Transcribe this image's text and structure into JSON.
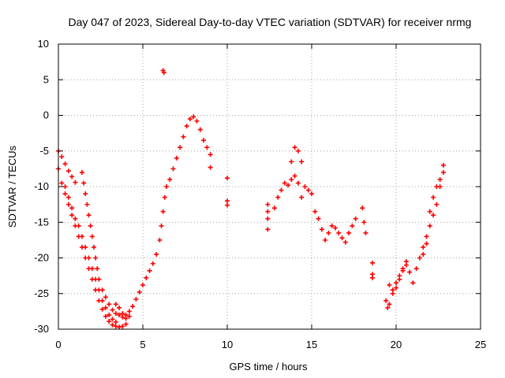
{
  "chart_data": {
    "type": "scatter",
    "title": "Day 047 of 2023, Sidereal Day-to-day VTEC variation (SDTVAR) for receiver nrmg",
    "xlabel": "GPS time / hours",
    "ylabel": "SDTVAR / TECUs",
    "xlim": [
      0,
      25
    ],
    "ylim": [
      -30,
      10
    ],
    "xticks": [
      0,
      5,
      10,
      15,
      20,
      25
    ],
    "yticks": [
      -30,
      -25,
      -20,
      -15,
      -10,
      -5,
      0,
      5,
      10
    ],
    "grid": true,
    "marker": "+",
    "colors": {
      "series": "#ff0000",
      "frame": "#000000",
      "grid": "#a0a0a0"
    },
    "series": [
      {
        "name": "SDTVAR",
        "points": [
          [
            0.0,
            -5.0
          ],
          [
            0.2,
            -5.8
          ],
          [
            0.4,
            -6.8
          ],
          [
            0.6,
            -7.8
          ],
          [
            0.8,
            -8.6
          ],
          [
            1.0,
            -9.4
          ],
          [
            0.0,
            -7.5
          ],
          [
            0.2,
            -9.5
          ],
          [
            0.4,
            -11.0
          ],
          [
            0.6,
            -12.5
          ],
          [
            0.8,
            -14.0
          ],
          [
            1.0,
            -15.5
          ],
          [
            1.2,
            -17.0
          ],
          [
            1.4,
            -18.5
          ],
          [
            1.6,
            -20.0
          ],
          [
            1.8,
            -21.5
          ],
          [
            2.0,
            -23.0
          ],
          [
            2.2,
            -24.5
          ],
          [
            2.4,
            -26.0
          ],
          [
            2.6,
            -27.2
          ],
          [
            2.8,
            -28.2
          ],
          [
            3.0,
            -28.9
          ],
          [
            3.2,
            -29.4
          ],
          [
            3.4,
            -29.6
          ],
          [
            3.6,
            -29.7
          ],
          [
            3.8,
            -29.6
          ],
          [
            4.0,
            -29.3
          ],
          [
            0.4,
            -10.0
          ],
          [
            0.6,
            -11.5
          ],
          [
            0.8,
            -13.0
          ],
          [
            1.0,
            -14.5
          ],
          [
            1.2,
            -15.5
          ],
          [
            1.4,
            -17.0
          ],
          [
            1.6,
            -18.5
          ],
          [
            1.8,
            -20.0
          ],
          [
            2.0,
            -21.5
          ],
          [
            2.2,
            -23.0
          ],
          [
            2.4,
            -24.5
          ],
          [
            2.6,
            -26.0
          ],
          [
            2.8,
            -27.0
          ],
          [
            3.0,
            -28.0
          ],
          [
            3.2,
            -28.6
          ],
          [
            3.4,
            -29.0
          ],
          [
            1.4,
            -8.0
          ],
          [
            1.5,
            -9.5
          ],
          [
            1.6,
            -11.0
          ],
          [
            1.7,
            -12.5
          ],
          [
            1.8,
            -14.0
          ],
          [
            1.9,
            -15.5
          ],
          [
            2.0,
            -17.0
          ],
          [
            2.1,
            -18.5
          ],
          [
            2.2,
            -20.0
          ],
          [
            2.3,
            -21.5
          ],
          [
            2.4,
            -23.0
          ],
          [
            2.6,
            -24.5
          ],
          [
            2.8,
            -25.5
          ],
          [
            3.0,
            -26.5
          ],
          [
            3.2,
            -27.3
          ],
          [
            3.4,
            -27.8
          ],
          [
            3.6,
            -28.0
          ],
          [
            3.8,
            -28.3
          ],
          [
            4.0,
            -28.5
          ],
          [
            4.2,
            -28.2
          ],
          [
            3.4,
            -26.5
          ],
          [
            3.6,
            -27.0
          ],
          [
            3.8,
            -27.8
          ],
          [
            4.0,
            -28.0
          ],
          [
            4.2,
            -27.5
          ],
          [
            4.4,
            -26.8
          ],
          [
            4.6,
            -25.8
          ],
          [
            4.8,
            -24.8
          ],
          [
            5.0,
            -23.8
          ],
          [
            5.2,
            -22.8
          ],
          [
            5.4,
            -21.8
          ],
          [
            5.6,
            -20.8
          ],
          [
            5.8,
            -19.5
          ],
          [
            6.0,
            -17.5
          ],
          [
            6.1,
            -15.5
          ],
          [
            6.2,
            -13.5
          ],
          [
            6.3,
            -11.5
          ],
          [
            6.4,
            -10.0
          ],
          [
            6.6,
            -9.0
          ],
          [
            6.8,
            -7.5
          ],
          [
            7.0,
            -6.0
          ],
          [
            7.2,
            -4.5
          ],
          [
            7.4,
            -3.0
          ],
          [
            7.6,
            -1.5
          ],
          [
            7.8,
            -0.5
          ],
          [
            8.0,
            -0.2
          ],
          [
            8.2,
            -0.8
          ],
          [
            8.4,
            -2.0
          ],
          [
            8.6,
            -3.5
          ],
          [
            8.8,
            -4.5
          ],
          [
            9.0,
            -5.5
          ],
          [
            9.0,
            -7.3
          ],
          [
            6.2,
            6.3
          ],
          [
            6.25,
            6.0
          ],
          [
            10.0,
            -8.8
          ],
          [
            10.0,
            -12.0
          ],
          [
            10.0,
            -12.6
          ],
          [
            12.4,
            -12.5
          ],
          [
            12.4,
            -13.5
          ],
          [
            12.4,
            -14.5
          ],
          [
            12.4,
            -16.0
          ],
          [
            12.8,
            -13.0
          ],
          [
            13.0,
            -11.5
          ],
          [
            13.2,
            -10.5
          ],
          [
            13.4,
            -9.5
          ],
          [
            13.6,
            -9.8
          ],
          [
            13.8,
            -6.5
          ],
          [
            14.0,
            -4.5
          ],
          [
            14.2,
            -5.0
          ],
          [
            14.4,
            -6.5
          ],
          [
            13.8,
            -9.0
          ],
          [
            14.0,
            -8.5
          ],
          [
            14.2,
            -9.5
          ],
          [
            14.4,
            -11.5
          ],
          [
            14.6,
            -10.0
          ],
          [
            14.8,
            -10.5
          ],
          [
            15.0,
            -11.0
          ],
          [
            15.2,
            -13.5
          ],
          [
            15.4,
            -14.5
          ],
          [
            15.6,
            -16.0
          ],
          [
            15.8,
            -17.5
          ],
          [
            16.0,
            -16.5
          ],
          [
            16.2,
            -15.5
          ],
          [
            16.4,
            -15.8
          ],
          [
            16.6,
            -16.5
          ],
          [
            16.8,
            -17.2
          ],
          [
            17.0,
            -17.8
          ],
          [
            17.2,
            -16.5
          ],
          [
            17.4,
            -15.5
          ],
          [
            17.6,
            -14.5
          ],
          [
            18.0,
            -13.0
          ],
          [
            18.1,
            -15.0
          ],
          [
            18.2,
            -16.5
          ],
          [
            18.6,
            -20.7
          ],
          [
            18.6,
            -22.3
          ],
          [
            18.6,
            -22.8
          ],
          [
            19.4,
            -26.0
          ],
          [
            19.5,
            -27.0
          ],
          [
            19.6,
            -26.5
          ],
          [
            19.8,
            -25.0
          ],
          [
            20.0,
            -24.2
          ],
          [
            20.2,
            -23.0
          ],
          [
            20.4,
            -21.5
          ],
          [
            20.6,
            -20.5
          ],
          [
            20.8,
            -22.0
          ],
          [
            21.0,
            -23.5
          ],
          [
            21.2,
            -21.5
          ],
          [
            21.4,
            -20.0
          ],
          [
            21.6,
            -18.5
          ],
          [
            21.8,
            -17.0
          ],
          [
            22.0,
            -15.5
          ],
          [
            22.2,
            -14.0
          ],
          [
            22.4,
            -12.5
          ],
          [
            22.6,
            -10.0
          ],
          [
            22.8,
            -7.0
          ],
          [
            19.6,
            -23.8
          ],
          [
            19.8,
            -24.5
          ],
          [
            20.0,
            -23.5
          ],
          [
            20.2,
            -22.5
          ],
          [
            20.4,
            -21.8
          ],
          [
            20.6,
            -21.0
          ],
          [
            21.6,
            -19.5
          ],
          [
            21.8,
            -18.0
          ],
          [
            22.0,
            -13.5
          ],
          [
            22.2,
            -11.5
          ],
          [
            22.4,
            -10.0
          ],
          [
            22.6,
            -9.0
          ],
          [
            22.8,
            -8.0
          ]
        ]
      }
    ]
  }
}
